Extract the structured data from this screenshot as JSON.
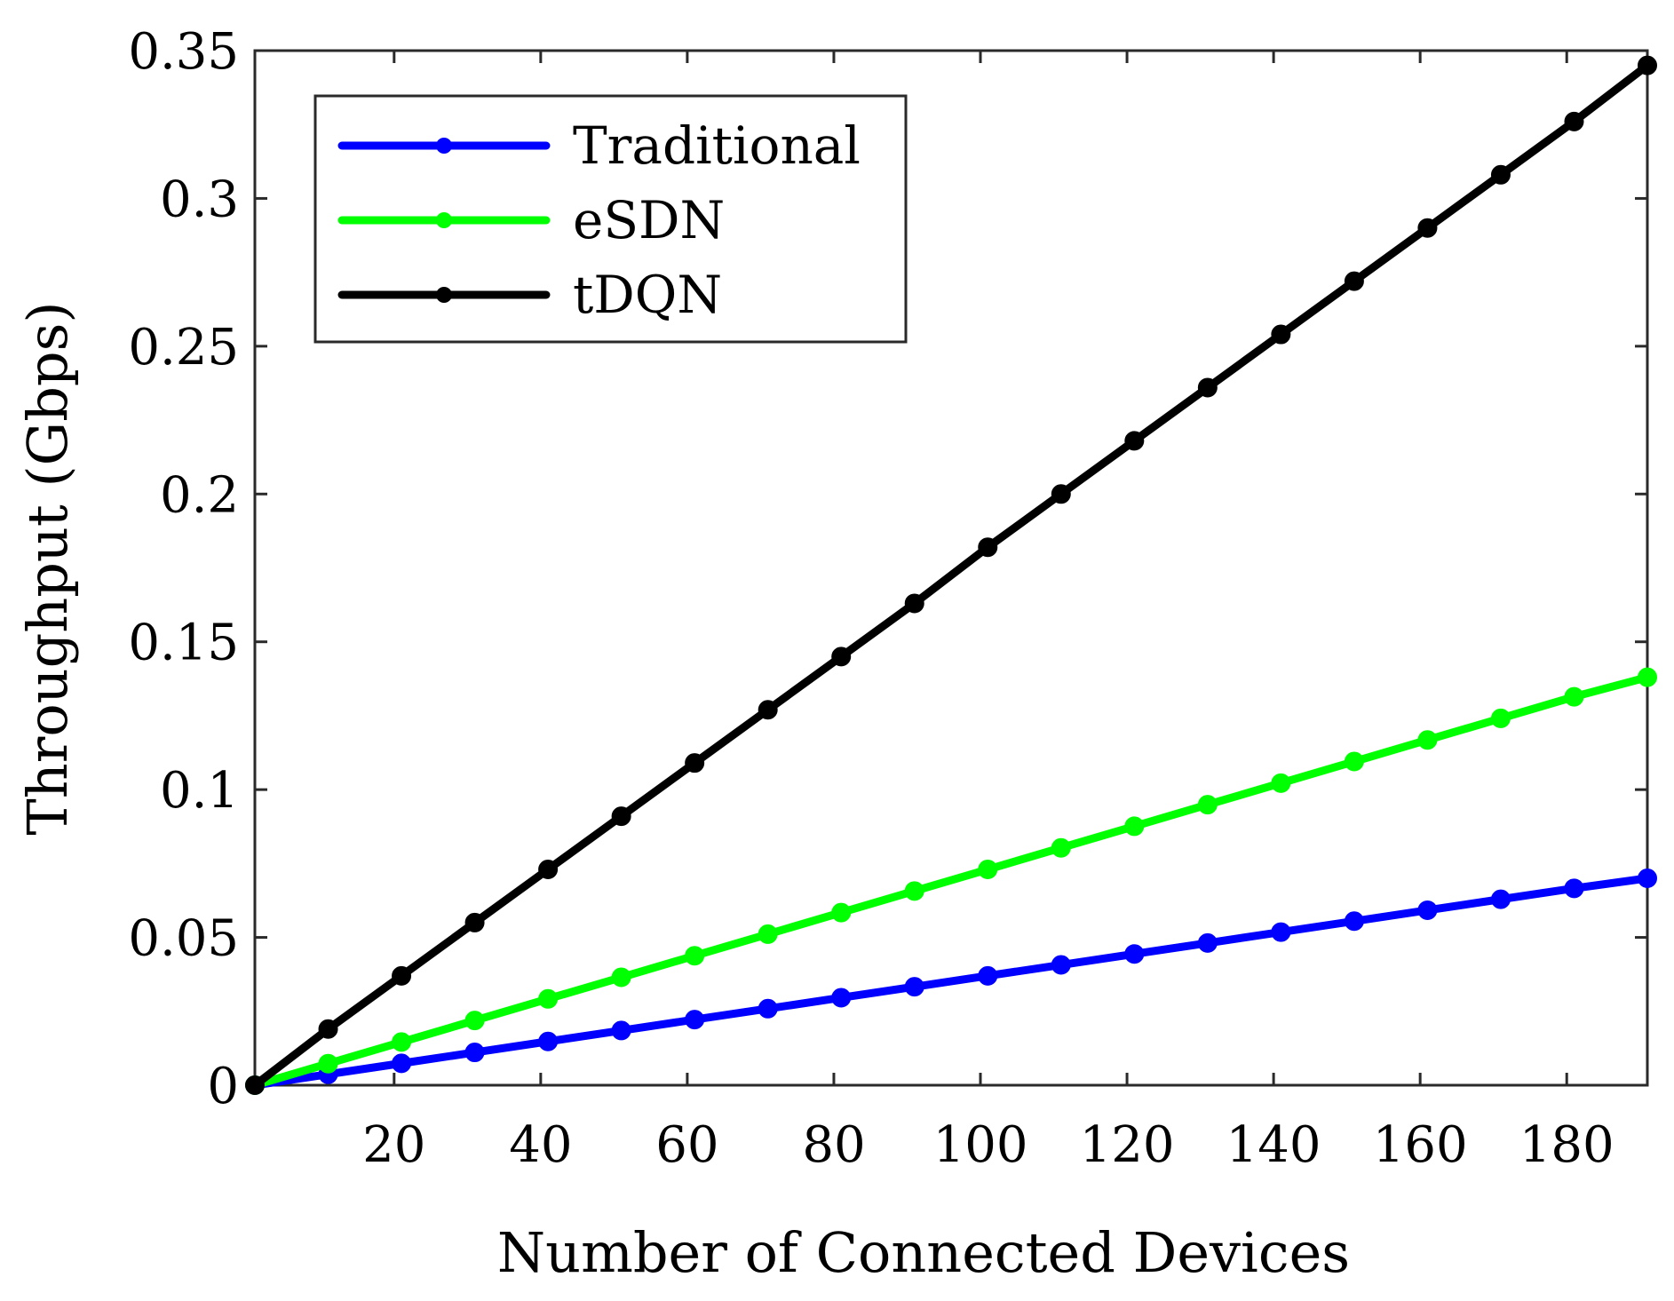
{
  "chart_data": {
    "type": "line",
    "title": "",
    "xlabel": "Number of Connected Devices",
    "ylabel": "Throughput (Gbps)",
    "xlim": [
      1,
      191
    ],
    "ylim": [
      0,
      0.35
    ],
    "xticks": [
      20,
      40,
      60,
      80,
      100,
      120,
      140,
      160,
      180
    ],
    "xtick_labels": [
      "20",
      "40",
      "60",
      "80",
      "100",
      "120",
      "140",
      "160",
      "180"
    ],
    "yticks": [
      0,
      0.05,
      0.1,
      0.15,
      0.2,
      0.25,
      0.3,
      0.35
    ],
    "ytick_labels": [
      "0",
      "0.05",
      "0.1",
      "0.15",
      "0.2",
      "0.25",
      "0.3",
      "0.35"
    ],
    "grid": false,
    "legend_position": "top-left",
    "x": [
      1,
      11,
      21,
      31,
      41,
      51,
      61,
      71,
      81,
      91,
      101,
      111,
      121,
      131,
      141,
      151,
      161,
      171,
      181,
      191
    ],
    "series": [
      {
        "name": "Traditional",
        "color": "#0000ff",
        "values": [
          0.0,
          0.0037,
          0.0074,
          0.0111,
          0.0148,
          0.0185,
          0.0222,
          0.0259,
          0.0296,
          0.0333,
          0.037,
          0.0407,
          0.0444,
          0.0481,
          0.0518,
          0.0555,
          0.0592,
          0.0629,
          0.0666,
          0.07
        ]
      },
      {
        "name": "eSDN",
        "color": "#00ff00",
        "values": [
          0.0,
          0.0073,
          0.0146,
          0.0219,
          0.0292,
          0.0365,
          0.0438,
          0.0511,
          0.0584,
          0.0657,
          0.073,
          0.0803,
          0.0876,
          0.0949,
          0.1022,
          0.1095,
          0.1168,
          0.1241,
          0.1314,
          0.138
        ]
      },
      {
        "name": "tDQN",
        "color": "#000000",
        "values": [
          0.0,
          0.019,
          0.037,
          0.055,
          0.073,
          0.091,
          0.109,
          0.127,
          0.145,
          0.163,
          0.182,
          0.2,
          0.218,
          0.236,
          0.254,
          0.272,
          0.29,
          0.308,
          0.326,
          0.345
        ]
      }
    ]
  }
}
